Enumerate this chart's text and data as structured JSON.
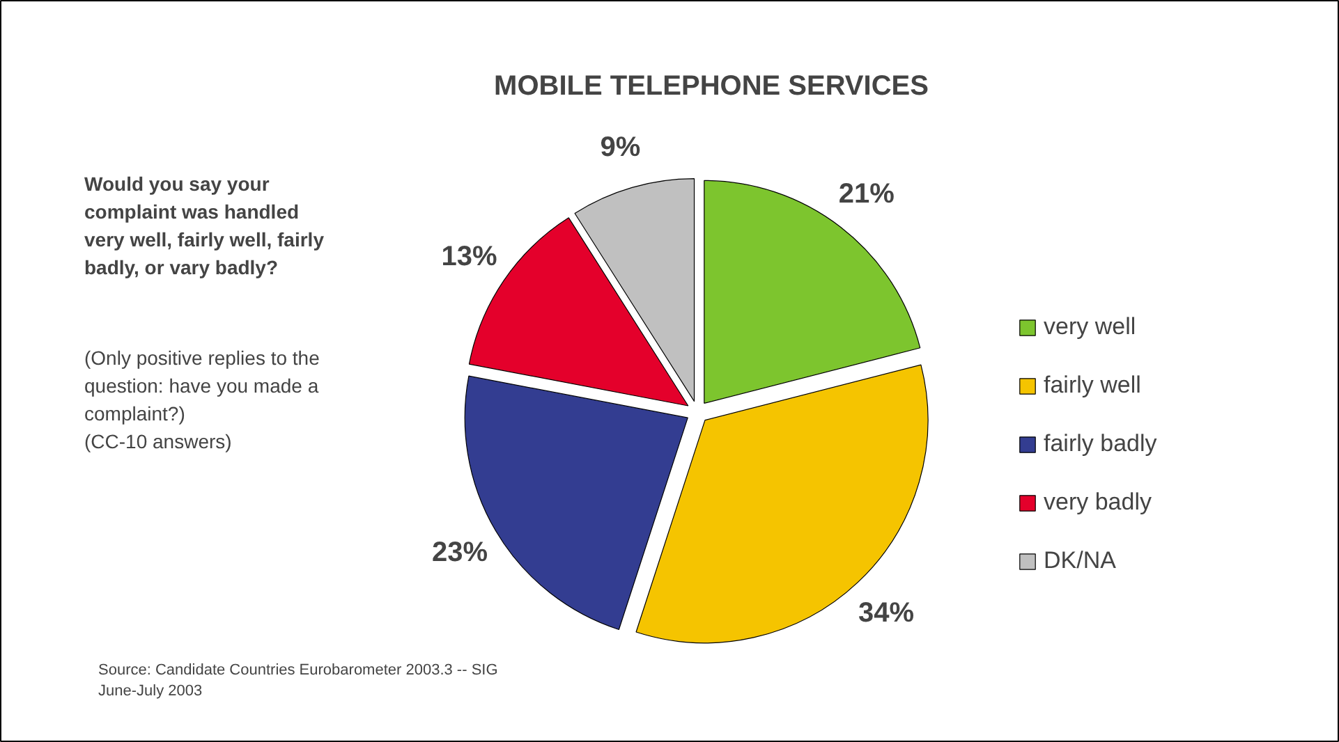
{
  "chart_data": {
    "type": "pie",
    "title": "MOBILE TELEPHONE SERVICES",
    "categories": [
      "very well",
      "fairly well",
      "fairly badly",
      "very badly",
      "DK/NA"
    ],
    "values": [
      21,
      34,
      23,
      13,
      9
    ],
    "colors": [
      "#7dc52e",
      "#f5c400",
      "#333d91",
      "#e4002b",
      "#c0c0c0"
    ],
    "value_labels": [
      "21%",
      "34%",
      "23%",
      "13%",
      "9%"
    ],
    "legend": "right",
    "annotations": [
      "Would you say your\ncomplaint was handled\nvery well, fairly well, fairly\nbadly, or vary badly?",
      "(Only positive replies to the\nquestion: have you made a\ncomplaint?)\n(CC-10 answers)",
      "Source: Candidate Countries Eurobarometer 2003.3 -- SIG\nJune-July 2003"
    ]
  }
}
